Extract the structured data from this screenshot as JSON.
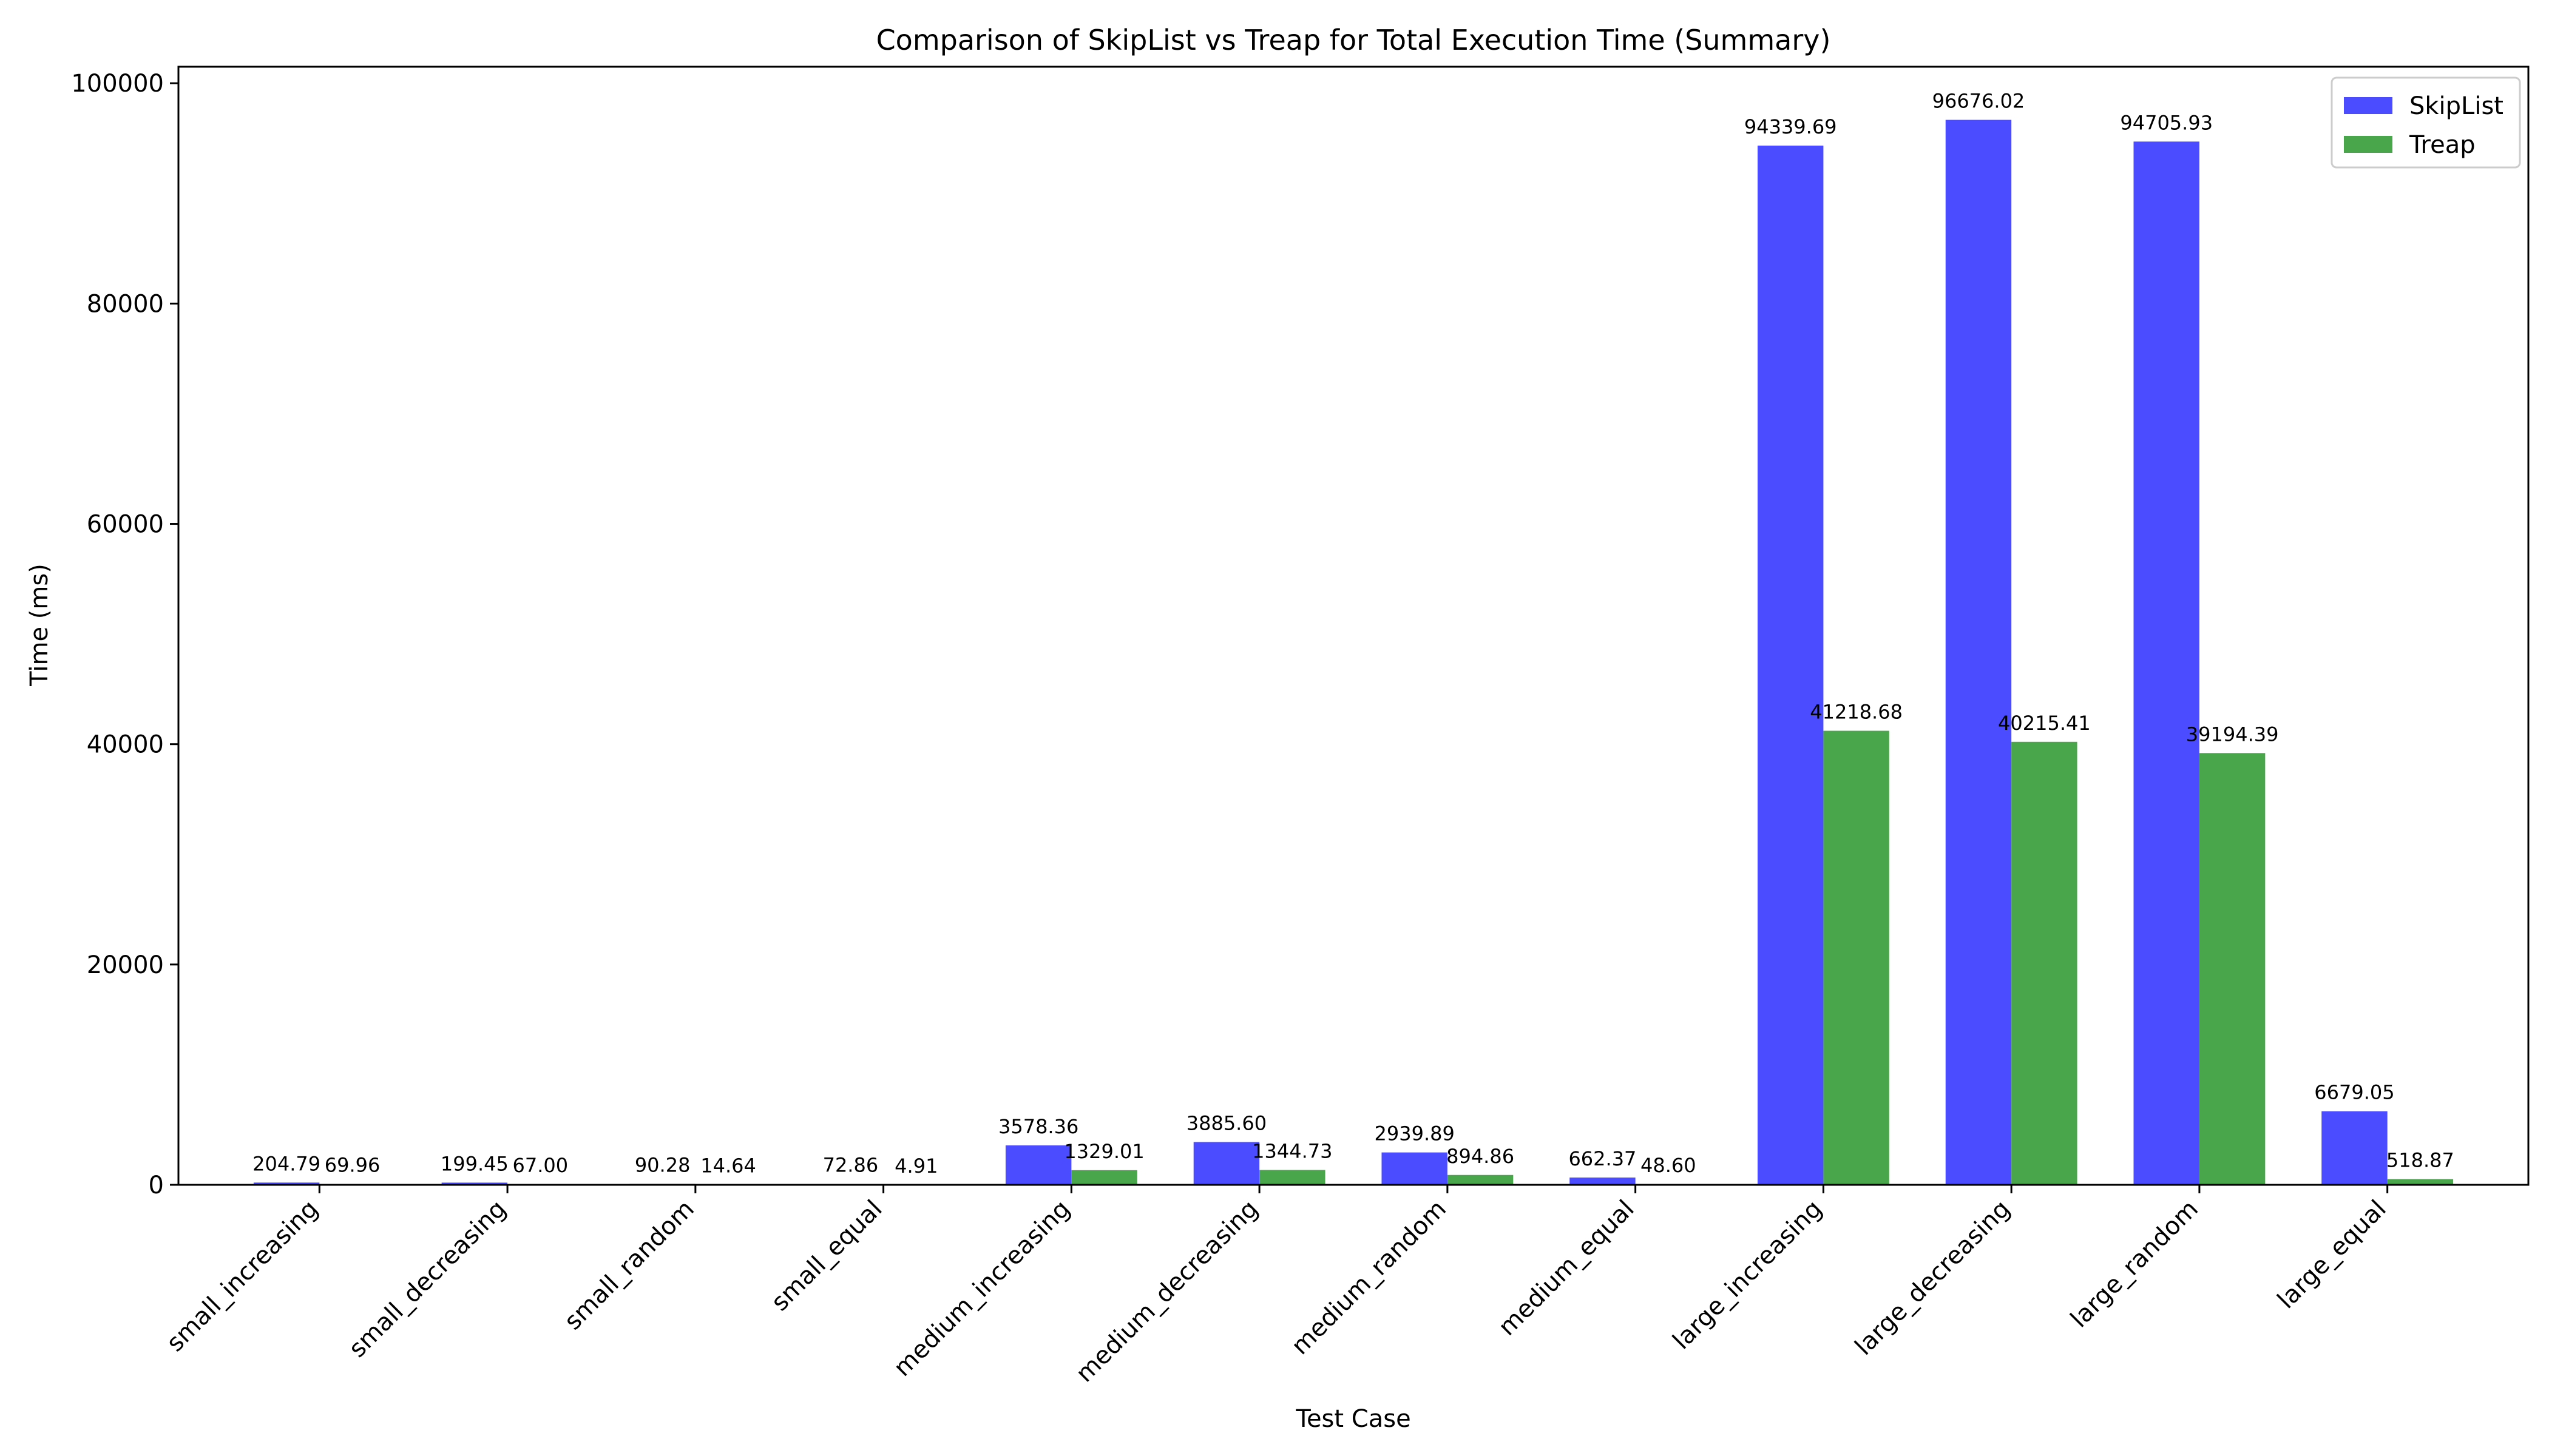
{
  "chart_data": {
    "type": "bar",
    "title": "Comparison of SkipList vs Treap for Total Execution Time (Summary)",
    "xlabel": "Test Case",
    "ylabel": "Time (ms)",
    "ylim": [
      0,
      101500
    ],
    "yticks": [
      0,
      20000,
      40000,
      60000,
      80000,
      100000
    ],
    "grid": false,
    "legend_position": "top-right",
    "categories": [
      "small_increasing",
      "small_decreasing",
      "small_random",
      "small_equal",
      "medium_increasing",
      "medium_decreasing",
      "medium_random",
      "medium_equal",
      "large_increasing",
      "large_decreasing",
      "large_random",
      "large_equal"
    ],
    "series": [
      {
        "name": "SkipList",
        "color": "#4b4bff",
        "values": [
          204.79,
          199.45,
          90.28,
          72.86,
          3578.36,
          3885.6,
          2939.89,
          662.37,
          94339.69,
          96676.02,
          94705.93,
          6679.05
        ],
        "labels": [
          "204.79",
          "199.45",
          "90.28",
          "72.86",
          "3578.36",
          "3885.60",
          "2939.89",
          "662.37",
          "94339.69",
          "96676.02",
          "94705.93",
          "6679.05"
        ]
      },
      {
        "name": "Treap",
        "color": "#4aa64a",
        "values": [
          69.96,
          67.0,
          14.64,
          4.91,
          1329.01,
          1344.73,
          894.86,
          48.6,
          41218.68,
          40215.41,
          39194.39,
          518.87
        ],
        "labels": [
          "69.96",
          "67.00",
          "14.64",
          "4.91",
          "1329.01",
          "1344.73",
          "894.86",
          "48.60",
          "41218.68",
          "40215.41",
          "39194.39",
          "518.87"
        ]
      }
    ]
  }
}
